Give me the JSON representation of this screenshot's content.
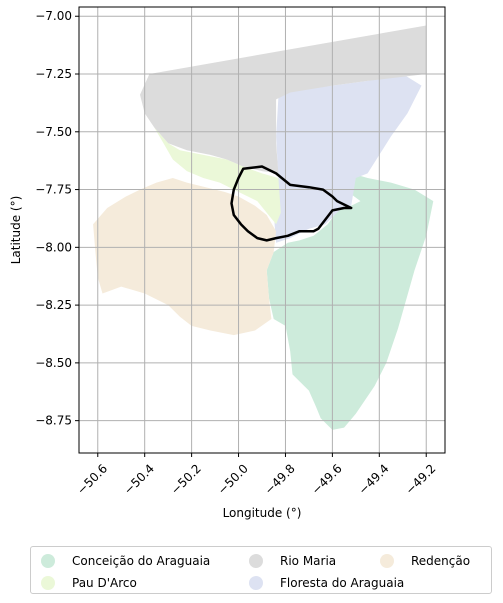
{
  "chart_data": {
    "type": "map",
    "xlabel": "Longitude (°)",
    "ylabel": "Latitude (°)",
    "xlim": [
      -50.68,
      -49.12
    ],
    "ylim": [
      -8.89,
      -6.96
    ],
    "x_ticks": [
      -50.6,
      -50.4,
      -50.2,
      -50.0,
      -49.8,
      -49.6,
      -49.4,
      -49.2
    ],
    "x_tick_labels": [
      "−50.6",
      "−50.4",
      "−50.2",
      "−50.0",
      "−49.8",
      "−49.6",
      "−49.4",
      "−49.2"
    ],
    "y_ticks": [
      -7.0,
      -7.25,
      -7.5,
      -7.75,
      -8.0,
      -8.25,
      -8.5,
      -8.75
    ],
    "y_tick_labels": [
      "−7.00",
      "−7.25",
      "−7.50",
      "−7.75",
      "−8.00",
      "−8.25",
      "−8.50",
      "−8.75"
    ],
    "grid": true,
    "legend_position": "bottom",
    "regions": [
      {
        "name": "Conceição do Araguaia",
        "color": "#cdebdb",
        "outline": [
          [
            -49.62,
            -7.65
          ],
          [
            -49.56,
            -7.74
          ],
          [
            -49.48,
            -7.8
          ],
          [
            -49.52,
            -7.82
          ],
          [
            -49.57,
            -7.83
          ],
          [
            -49.62,
            -7.9
          ],
          [
            -49.68,
            -7.95
          ],
          [
            -49.74,
            -7.97
          ],
          [
            -49.79,
            -7.98
          ],
          [
            -49.85,
            -8.02
          ],
          [
            -49.88,
            -8.1
          ],
          [
            -49.87,
            -8.22
          ],
          [
            -49.85,
            -8.31
          ],
          [
            -49.8,
            -8.34
          ],
          [
            -49.78,
            -8.45
          ],
          [
            -49.77,
            -8.55
          ],
          [
            -49.7,
            -8.62
          ],
          [
            -49.67,
            -8.69
          ],
          [
            -49.65,
            -8.74
          ],
          [
            -49.6,
            -8.79
          ],
          [
            -49.55,
            -8.78
          ],
          [
            -49.5,
            -8.72
          ],
          [
            -49.42,
            -8.6
          ],
          [
            -49.37,
            -8.5
          ],
          [
            -49.32,
            -8.35
          ],
          [
            -49.25,
            -8.1
          ],
          [
            -49.2,
            -7.95
          ],
          [
            -49.17,
            -7.8
          ],
          [
            -49.25,
            -7.75
          ],
          [
            -49.35,
            -7.72
          ],
          [
            -49.45,
            -7.7
          ],
          [
            -49.55,
            -7.67
          ]
        ]
      },
      {
        "name": "Floresta do Araguaia",
        "color": "#dde2f2",
        "outline": [
          [
            -49.83,
            -7.35
          ],
          [
            -49.78,
            -7.32
          ],
          [
            -49.6,
            -7.3
          ],
          [
            -49.45,
            -7.28
          ],
          [
            -49.3,
            -7.25
          ],
          [
            -49.22,
            -7.3
          ],
          [
            -49.28,
            -7.42
          ],
          [
            -49.35,
            -7.52
          ],
          [
            -49.4,
            -7.6
          ],
          [
            -49.45,
            -7.68
          ],
          [
            -49.5,
            -7.7
          ],
          [
            -49.52,
            -7.82
          ],
          [
            -49.57,
            -7.84
          ],
          [
            -49.63,
            -7.9
          ],
          [
            -49.7,
            -7.92
          ],
          [
            -49.78,
            -7.96
          ],
          [
            -49.84,
            -7.98
          ],
          [
            -49.85,
            -7.85
          ],
          [
            -49.83,
            -7.7
          ],
          [
            -49.84,
            -7.52
          ]
        ]
      },
      {
        "name": "Pau D'Arco",
        "color": "#ebf8d8",
        "outline": [
          [
            -50.36,
            -7.48
          ],
          [
            -50.32,
            -7.55
          ],
          [
            -50.28,
            -7.62
          ],
          [
            -50.22,
            -7.67
          ],
          [
            -50.15,
            -7.7
          ],
          [
            -50.08,
            -7.72
          ],
          [
            -50.02,
            -7.75
          ],
          [
            -49.96,
            -7.78
          ],
          [
            -49.92,
            -7.8
          ],
          [
            -49.88,
            -7.85
          ],
          [
            -49.84,
            -7.9
          ],
          [
            -49.82,
            -7.85
          ],
          [
            -49.83,
            -7.7
          ],
          [
            -49.9,
            -7.68
          ],
          [
            -49.98,
            -7.65
          ],
          [
            -50.05,
            -7.62
          ],
          [
            -50.15,
            -7.6
          ],
          [
            -50.25,
            -7.58
          ],
          [
            -50.3,
            -7.55
          ]
        ]
      },
      {
        "name": "Redenção",
        "color": "#f5ebdb",
        "outline": [
          [
            -50.62,
            -7.9
          ],
          [
            -50.56,
            -7.83
          ],
          [
            -50.48,
            -7.78
          ],
          [
            -50.42,
            -7.75
          ],
          [
            -50.35,
            -7.72
          ],
          [
            -50.28,
            -7.7
          ],
          [
            -50.22,
            -7.72
          ],
          [
            -50.14,
            -7.74
          ],
          [
            -50.06,
            -7.76
          ],
          [
            -50.0,
            -7.78
          ],
          [
            -49.93,
            -7.82
          ],
          [
            -49.88,
            -7.86
          ],
          [
            -49.84,
            -7.93
          ],
          [
            -49.85,
            -8.02
          ],
          [
            -49.88,
            -8.1
          ],
          [
            -49.87,
            -8.22
          ],
          [
            -49.86,
            -8.31
          ],
          [
            -49.93,
            -8.36
          ],
          [
            -50.02,
            -8.38
          ],
          [
            -50.12,
            -8.36
          ],
          [
            -50.2,
            -8.34
          ],
          [
            -50.25,
            -8.3
          ],
          [
            -50.3,
            -8.25
          ],
          [
            -50.4,
            -8.2
          ],
          [
            -50.5,
            -8.17
          ],
          [
            -50.58,
            -8.2
          ],
          [
            -50.6,
            -8.13
          ],
          [
            -50.61,
            -8.02
          ]
        ]
      },
      {
        "name": "Rio Maria",
        "color": "#dcdcdc",
        "outline": [
          [
            -50.38,
            -7.25
          ],
          [
            -49.2,
            -7.04
          ],
          [
            -49.2,
            -7.25
          ],
          [
            -49.28,
            -7.26
          ],
          [
            -49.45,
            -7.28
          ],
          [
            -49.6,
            -7.3
          ],
          [
            -49.78,
            -7.33
          ],
          [
            -49.84,
            -7.36
          ],
          [
            -49.84,
            -7.55
          ],
          [
            -49.83,
            -7.68
          ],
          [
            -49.9,
            -7.67
          ],
          [
            -49.98,
            -7.65
          ],
          [
            -50.05,
            -7.62
          ],
          [
            -50.12,
            -7.6
          ],
          [
            -50.22,
            -7.58
          ],
          [
            -50.3,
            -7.55
          ],
          [
            -50.36,
            -7.48
          ],
          [
            -50.4,
            -7.42
          ],
          [
            -50.42,
            -7.34
          ]
        ]
      }
    ],
    "highlight_outline": [
      [
        -49.98,
        -7.66
      ],
      [
        -49.9,
        -7.65
      ],
      [
        -49.84,
        -7.68
      ],
      [
        -49.78,
        -7.73
      ],
      [
        -49.7,
        -7.74
      ],
      [
        -49.64,
        -7.75
      ],
      [
        -49.6,
        -7.78
      ],
      [
        -49.58,
        -7.8
      ],
      [
        -49.52,
        -7.83
      ],
      [
        -49.55,
        -7.83
      ],
      [
        -49.6,
        -7.84
      ],
      [
        -49.63,
        -7.88
      ],
      [
        -49.66,
        -7.92
      ],
      [
        -49.68,
        -7.93
      ],
      [
        -49.74,
        -7.93
      ],
      [
        -49.79,
        -7.95
      ],
      [
        -49.84,
        -7.96
      ],
      [
        -49.88,
        -7.97
      ],
      [
        -49.92,
        -7.96
      ],
      [
        -49.96,
        -7.93
      ],
      [
        -49.99,
        -7.9
      ],
      [
        -50.02,
        -7.86
      ],
      [
        -50.03,
        -7.81
      ],
      [
        -50.02,
        -7.75
      ],
      [
        -50.0,
        -7.7
      ]
    ]
  },
  "legend": [
    {
      "label": "Conceição do Araguaia",
      "color": "#cdebdb"
    },
    {
      "label": "Pau D'Arco",
      "color": "#ebf8d8"
    },
    {
      "label": "Rio Maria",
      "color": "#dcdcdc"
    },
    {
      "label": "Floresta do Araguaia",
      "color": "#dde2f2"
    },
    {
      "label": "Redenção",
      "color": "#f5ebdb"
    }
  ]
}
